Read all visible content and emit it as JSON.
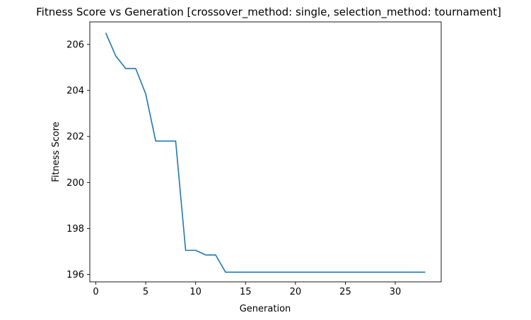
{
  "chart_data": {
    "type": "line",
    "title": "Fitness Score vs Generation [crossover_method: single, selection_method: tournament]",
    "xlabel": "Generation",
    "ylabel": "Fitness Score",
    "xlim": [
      -0.6,
      34.6
    ],
    "ylim": [
      195.68,
      206.98
    ],
    "x_ticks": [
      0,
      5,
      10,
      15,
      20,
      25,
      30
    ],
    "y_ticks": [
      196,
      198,
      200,
      202,
      204,
      206
    ],
    "grid": false,
    "line_color": "#1f77b4",
    "series": [
      {
        "x": [
          1,
          2,
          3,
          4,
          5,
          6,
          7,
          8,
          9,
          10,
          11,
          12,
          13,
          14,
          15,
          16,
          17,
          18,
          19,
          20,
          21,
          22,
          23,
          24,
          25,
          26,
          27,
          28,
          29,
          30,
          31,
          32,
          33
        ],
        "values": [
          206.5,
          205.5,
          204.95,
          204.95,
          203.85,
          201.8,
          201.8,
          201.8,
          197.05,
          197.05,
          196.85,
          196.85,
          196.1,
          196.1,
          196.1,
          196.1,
          196.1,
          196.1,
          196.1,
          196.1,
          196.1,
          196.1,
          196.1,
          196.1,
          196.1,
          196.1,
          196.1,
          196.1,
          196.1,
          196.1,
          196.1,
          196.1,
          196.1
        ]
      }
    ]
  }
}
